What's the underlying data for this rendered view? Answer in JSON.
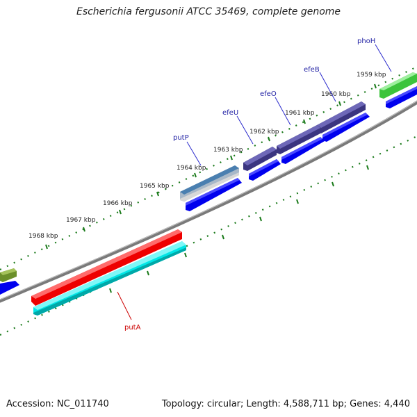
{
  "title": "Escherichia fergusonii ATCC 35469, complete genome",
  "accession": "Accession: NC_011740",
  "summary": "Topology: circular; Length: 4,588,711 bp; Genes: 4,440",
  "kbp_labels": [
    "1959 kbp",
    "1960 kbp",
    "1961 kbp",
    "1962 kbp",
    "1963 kbp",
    "1964 kbp",
    "1965 kbp",
    "1966 kbp",
    "1967 kbp",
    "1968 kbp"
  ],
  "genes": [
    {
      "name": "phoH",
      "color": "#1f1fa3"
    },
    {
      "name": "efeB",
      "color": "#1f1fa3"
    },
    {
      "name": "efeO",
      "color": "#1f1fa3"
    },
    {
      "name": "efeU",
      "color": "#1f1fa3"
    },
    {
      "name": "putP",
      "color": "#1f1fa3"
    },
    {
      "name": "putA",
      "color": "#cc0000"
    }
  ],
  "colors": {
    "backbone": "#7a7a7a",
    "ticks": "#1a7a1a",
    "cds": "#0000ee",
    "efe_genes": "#3b3580",
    "phoH_gene": "#3cc43c",
    "putP_gene": "#4a7fb0",
    "putA_gene": "#ee0000",
    "putA_cds": "#00e6e6",
    "left_gene": "#6b8f2a"
  }
}
